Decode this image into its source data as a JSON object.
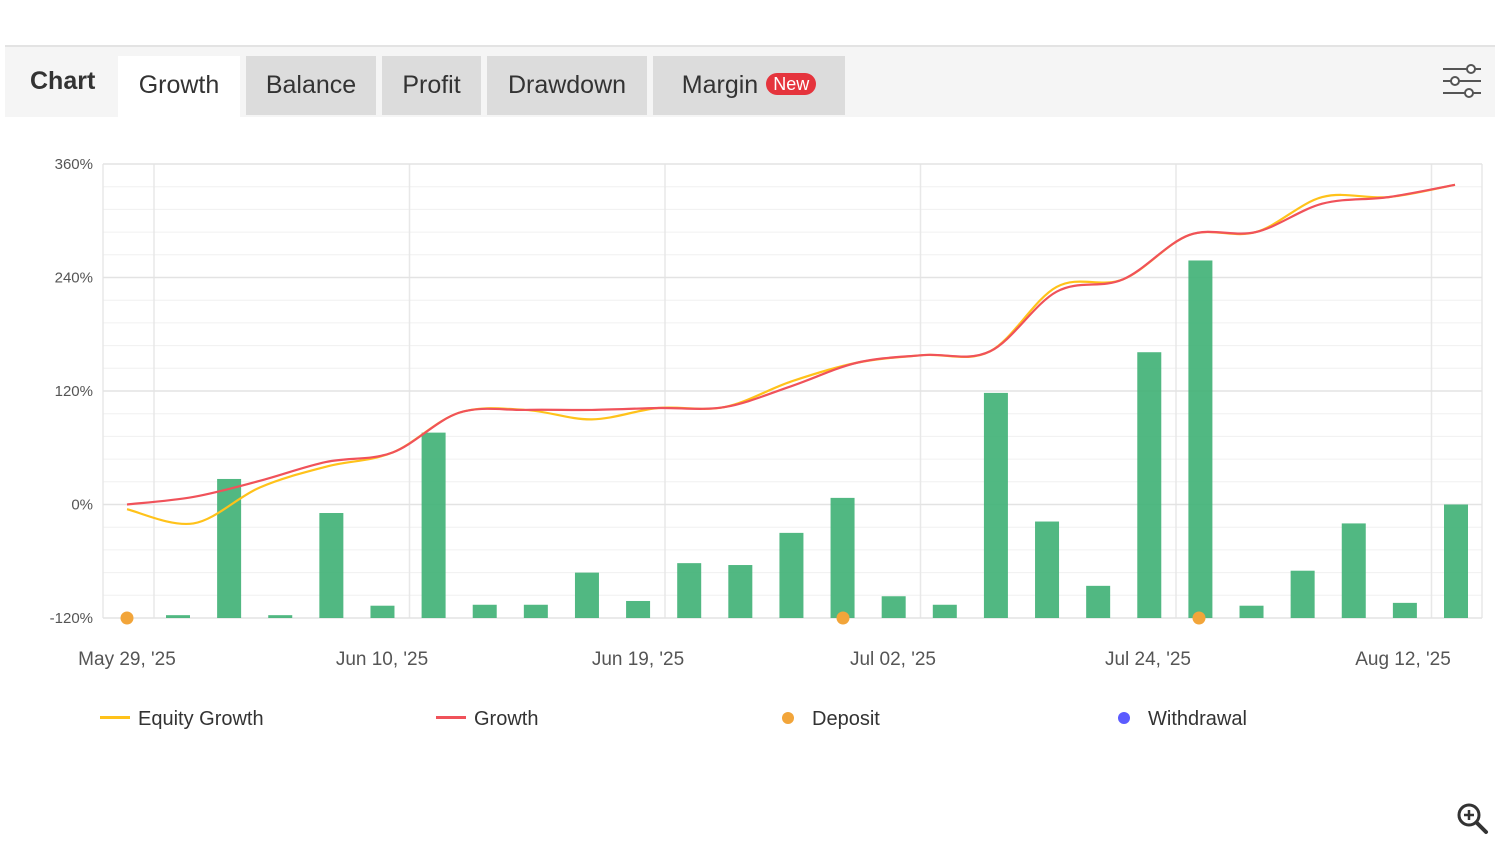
{
  "tabs": {
    "title": "Chart",
    "items": [
      {
        "label": "Growth",
        "active": true
      },
      {
        "label": "Balance",
        "active": false
      },
      {
        "label": "Profit",
        "active": false
      },
      {
        "label": "Drawdown",
        "active": false
      },
      {
        "label": "Margin",
        "active": false,
        "badge": "New"
      }
    ],
    "settings_icon": "sliders-icon"
  },
  "colors": {
    "equity": "#ffc21a",
    "growth": "#f0525a",
    "bars": "#3eb074",
    "deposit": "#f2a53a",
    "withdrawal": "#5b5bff",
    "badge": "#e5343d"
  },
  "chart_data": {
    "type": "bar+line",
    "ylim": [
      -120,
      360
    ],
    "y_ticks": [
      "360%",
      "240%",
      "120%",
      "0%",
      "-120%"
    ],
    "x_tick_labels": [
      "May 29, '25",
      "Jun 10, '25",
      "Jun 19, '25",
      "Jul 02, '25",
      "Jul 24, '25",
      "Aug 12, '25"
    ],
    "bars": [
      -117,
      27,
      -117,
      -9,
      -107,
      76,
      -106,
      -106,
      -72,
      -102,
      -62,
      -64,
      -30,
      7,
      -97,
      -106,
      118,
      -18,
      -86,
      161,
      258,
      -107,
      -70,
      -20,
      -104,
      0
    ],
    "equity_growth": [
      -5,
      -20,
      18,
      40,
      55,
      97,
      100,
      90,
      102,
      103,
      130,
      150,
      158,
      162,
      230,
      238,
      285,
      288,
      325,
      325,
      338
    ],
    "growth": [
      0,
      8,
      25,
      45,
      55,
      97,
      100,
      100,
      102,
      103,
      125,
      150,
      158,
      162,
      225,
      238,
      285,
      288,
      318,
      325,
      338
    ],
    "deposits": [
      "May 29, '25",
      "Jul 02, '25",
      "Jul 24, '25"
    ],
    "legend": [
      "Equity Growth",
      "Growth",
      "Deposit",
      "Withdrawal"
    ]
  },
  "zoom_icon": "zoom-in-icon"
}
